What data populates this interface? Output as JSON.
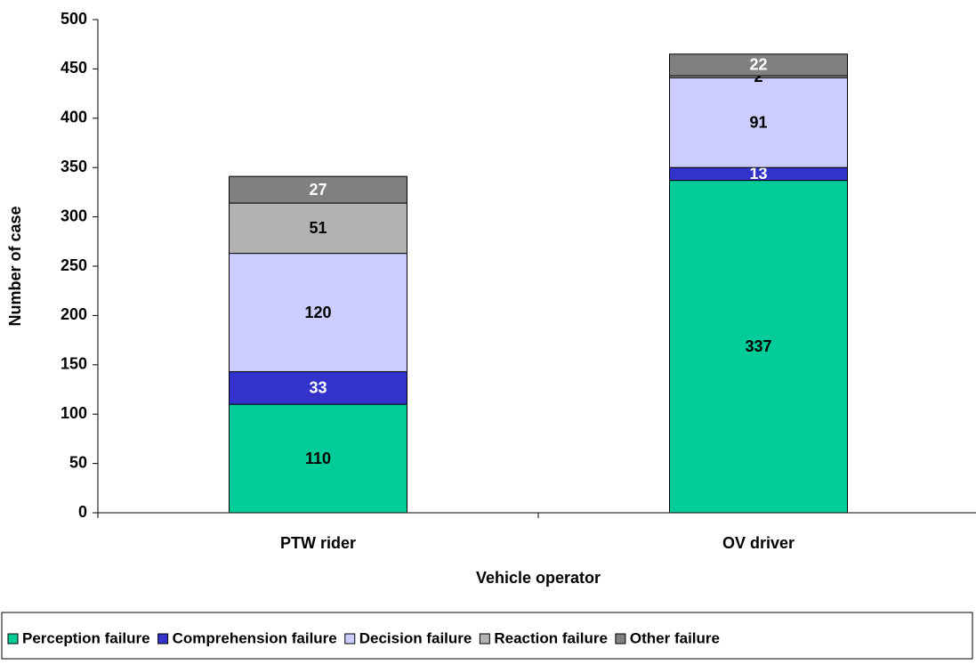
{
  "chart_data": {
    "type": "stacked_bar",
    "x_label": "Vehicle operator",
    "y_label": "Number of case",
    "categories": [
      "PTW rider",
      "OV driver"
    ],
    "series": [
      {
        "name": "Perception failure",
        "color": "#00cc99",
        "label_color": "#000000",
        "values": [
          110,
          337
        ]
      },
      {
        "name": "Comprehension failure",
        "color": "#3333cc",
        "label_color": "#ffffff",
        "values": [
          33,
          13
        ]
      },
      {
        "name": "Decision failure",
        "color": "#ccccff",
        "label_color": "#000000",
        "values": [
          120,
          91
        ]
      },
      {
        "name": "Reaction failure",
        "color": "#b2b2b2",
        "label_color": "#000000",
        "values": [
          51,
          2
        ]
      },
      {
        "name": "Other failure",
        "color": "#808080",
        "label_color": "#ffffff",
        "values": [
          27,
          22
        ]
      }
    ],
    "ylim": [
      0,
      500
    ],
    "yticks": [
      0,
      50,
      100,
      150,
      200,
      250,
      300,
      350,
      400,
      450,
      500
    ],
    "legend": "bottom"
  }
}
